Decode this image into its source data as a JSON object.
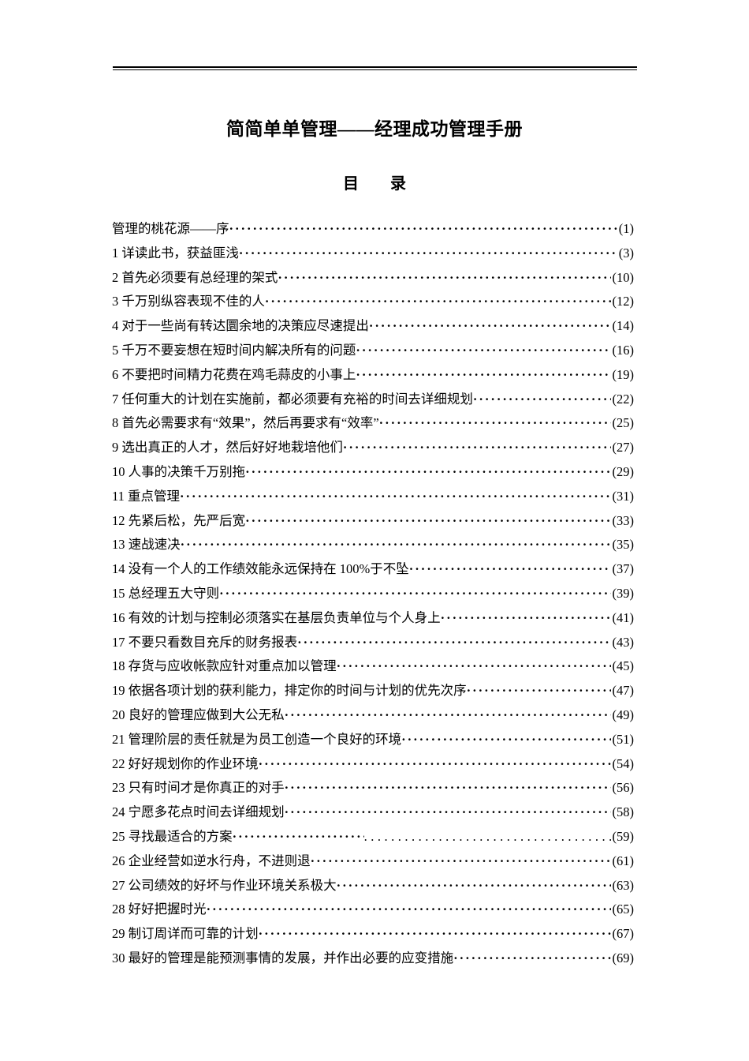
{
  "document": {
    "title": "简简单单管理——经理成功管理手册",
    "toc_heading": "目　　录"
  },
  "toc": {
    "entries": [
      {
        "label": "管理的桃花源——序",
        "page": "(1)"
      },
      {
        "label": "1 详读此书，获益匪浅",
        "page": "(3)"
      },
      {
        "label": "2 首先必须要有总经理的架式",
        "page": "(10)"
      },
      {
        "label": "3 千万别纵容表现不佳的人",
        "page": "(12)"
      },
      {
        "label": "4 对于一些尚有转达圜余地的决策应尽速提出",
        "page": "(14)"
      },
      {
        "label": "5 千万不要妄想在短时间内解决所有的问题",
        "page": "(16)"
      },
      {
        "label": "6 不要把时间精力花费在鸡毛蒜皮的小事上",
        "page": "(19)"
      },
      {
        "label": "7 任何重大的计划在实施前，都必须要有充裕的时间去详细规划",
        "page": "(22)"
      },
      {
        "label": "8 首先必需要求有“效果”，然后再要求有“效率”",
        "page": "(25)"
      },
      {
        "label": "9 选出真正的人才，然后好好地栽培他们",
        "page": "(27)"
      },
      {
        "label": "10 人事的决策千万别拖",
        "page": "(29)"
      },
      {
        "label": "11 重点管理",
        "page": "(31)"
      },
      {
        "label": "12 先紧后松，先严后宽",
        "page": "(33)"
      },
      {
        "label": "13 速战速决",
        "page": "(35)"
      },
      {
        "label": "14 没有一个人的工作绩效能永远保持在 100%于不坠",
        "page": "(37)"
      },
      {
        "label": "15 总经理五大守则",
        "page": "(39)"
      },
      {
        "label": "16 有效的计划与控制必须落实在基层负责单位与个人身上",
        "page": "(41)"
      },
      {
        "label": "17 不要只看数目充斥的财务报表",
        "page": "(43)"
      },
      {
        "label": "18 存货与应收帐款应针对重点加以管理",
        "page": "(45)"
      },
      {
        "label": "19 依据各项计划的获利能力，排定你的时间与计划的优先次序",
        "page": "(47)"
      },
      {
        "label": "20 良好的管理应做到大公无私",
        "page": "(49)"
      },
      {
        "label": "21 管理阶层的责任就是为员工创造一个良好的环境",
        "page": "(51)"
      },
      {
        "label": "22 好好规划你的作业环境",
        "page": "(54)"
      },
      {
        "label": "23 只有时间才是你真正的对手",
        "page": "(56)"
      },
      {
        "label": "24 宁愿多花点时间去详细规划",
        "page": "(58)"
      },
      {
        "label": "25 寻找最适合的方案",
        "page": "(59)",
        "leader": "mixed"
      },
      {
        "label": "26 企业经营如逆水行舟，不进则退",
        "page": "(61)"
      },
      {
        "label": "27 公司绩效的好坏与作业环境关系极大",
        "page": "(63)"
      },
      {
        "label": "28 好好把握时光",
        "page": "(65)"
      },
      {
        "label": "29 制订周详而可靠的计划",
        "page": "(67)"
      },
      {
        "label": "30 最好的管理是能预测事情的发展，并作出必要的应变措施",
        "page": "(69)"
      }
    ]
  }
}
